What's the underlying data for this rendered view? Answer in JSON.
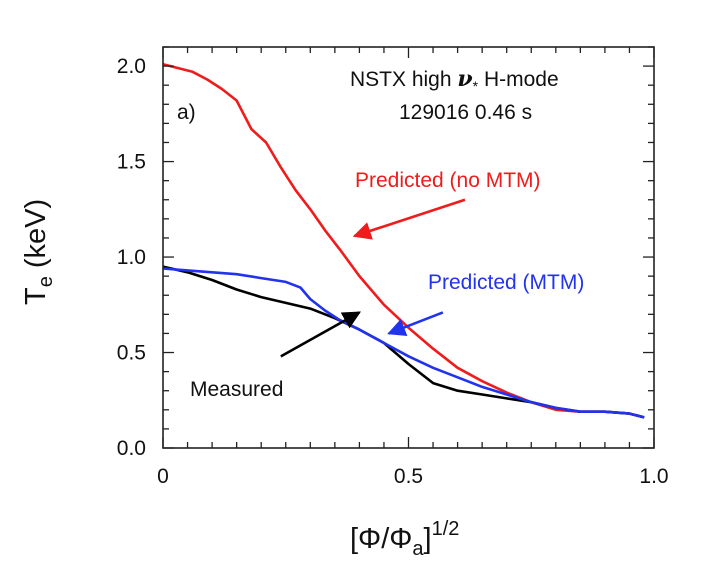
{
  "chart_data": {
    "type": "line",
    "xlabel": {
      "main": "[Φ/Φ",
      "sub": "a",
      "tail": "]",
      "sup": "1/2"
    },
    "ylabel": {
      "main": "T",
      "sub": "e",
      "tail": " (keV)"
    },
    "xlim": [
      0,
      1.0
    ],
    "ylim": [
      0,
      2.1
    ],
    "x_ticks": [
      0,
      0.5,
      1.0
    ],
    "x_tick_labels": [
      "0",
      "0.5",
      "1.0"
    ],
    "y_ticks": [
      0,
      0.5,
      1.0,
      1.5,
      2.0
    ],
    "y_tick_labels": [
      "0.0",
      "0.5",
      "1.0",
      "1.5",
      "2.0"
    ],
    "panel_label": "a)",
    "annotation": {
      "line1_prefix": "NSTX high ",
      "line1_symbol": "ν",
      "line1_sub": "*",
      "line1_suffix": " H-mode",
      "line2": "129016  0.46 s"
    },
    "labels": {
      "no_mtm": "Predicted (no MTM)",
      "mtm": "Predicted (MTM)",
      "measured": "Measured"
    },
    "colors": {
      "no_mtm": "#ee1c1c",
      "mtm": "#2233ee",
      "measured": "#000000"
    },
    "series": [
      {
        "key": "no_mtm",
        "x": [
          0.0,
          0.03,
          0.06,
          0.09,
          0.12,
          0.15,
          0.18,
          0.21,
          0.24,
          0.27,
          0.3,
          0.33,
          0.36,
          0.4,
          0.45,
          0.5,
          0.55,
          0.6,
          0.65,
          0.7,
          0.75,
          0.8,
          0.85,
          0.9,
          0.95,
          0.98
        ],
        "y": [
          2.01,
          1.99,
          1.97,
          1.93,
          1.88,
          1.82,
          1.67,
          1.6,
          1.47,
          1.35,
          1.25,
          1.14,
          1.04,
          0.9,
          0.75,
          0.63,
          0.52,
          0.42,
          0.35,
          0.29,
          0.24,
          0.2,
          0.19,
          0.19,
          0.18,
          0.16
        ]
      },
      {
        "key": "mtm",
        "x": [
          0.0,
          0.05,
          0.1,
          0.15,
          0.2,
          0.25,
          0.28,
          0.3,
          0.33,
          0.36,
          0.4,
          0.45,
          0.5,
          0.55,
          0.6,
          0.65,
          0.7,
          0.75,
          0.8,
          0.85,
          0.9,
          0.95,
          0.98
        ],
        "y": [
          0.94,
          0.93,
          0.92,
          0.91,
          0.89,
          0.87,
          0.84,
          0.78,
          0.72,
          0.67,
          0.62,
          0.55,
          0.48,
          0.42,
          0.37,
          0.32,
          0.28,
          0.24,
          0.21,
          0.19,
          0.19,
          0.18,
          0.16
        ]
      },
      {
        "key": "measured",
        "x": [
          0.0,
          0.05,
          0.1,
          0.15,
          0.2,
          0.25,
          0.3,
          0.35,
          0.4,
          0.45,
          0.5,
          0.55,
          0.6,
          0.65,
          0.7,
          0.75,
          0.8,
          0.85,
          0.9,
          0.95,
          0.98
        ],
        "y": [
          0.95,
          0.92,
          0.88,
          0.83,
          0.79,
          0.76,
          0.73,
          0.68,
          0.62,
          0.55,
          0.44,
          0.34,
          0.3,
          0.28,
          0.26,
          0.24,
          0.21,
          0.19,
          0.19,
          0.18,
          0.16
        ]
      }
    ],
    "arrows": [
      {
        "key": "no_mtm",
        "from": [
          0.615,
          1.3
        ],
        "to": [
          0.39,
          1.11
        ]
      },
      {
        "key": "mtm",
        "from": [
          0.57,
          0.71
        ],
        "to": [
          0.46,
          0.6
        ]
      },
      {
        "key": "measured",
        "from": [
          0.24,
          0.48
        ],
        "to": [
          0.4,
          0.71
        ]
      }
    ],
    "grid": false,
    "legend": "none"
  }
}
